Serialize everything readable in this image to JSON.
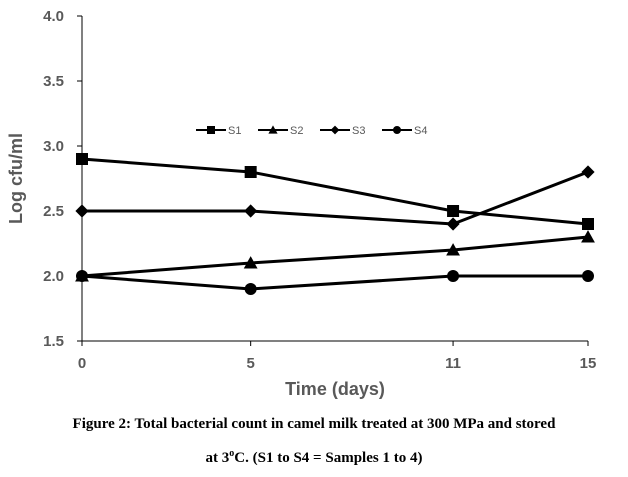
{
  "chart_data": {
    "type": "line",
    "x": [
      0,
      5,
      11,
      15
    ],
    "x_tick_labels": [
      "0",
      "5",
      "11",
      "15"
    ],
    "y_tick_labels": [
      "1.5",
      "2.0",
      "2.5",
      "3.0",
      "3.5",
      "4.0"
    ],
    "ylim": [
      1.5,
      4.0
    ],
    "xlabel": "Time (days)",
    "ylabel": "Log cfu/ml",
    "grid": false,
    "legend_position": "top-center",
    "series": [
      {
        "name": "S1",
        "marker": "square",
        "values": [
          2.9,
          2.8,
          2.5,
          2.4
        ]
      },
      {
        "name": "S2",
        "marker": "triangle",
        "values": [
          2.0,
          2.1,
          2.2,
          2.3
        ]
      },
      {
        "name": "S3",
        "marker": "diamond",
        "values": [
          2.5,
          2.5,
          2.4,
          2.8
        ]
      },
      {
        "name": "S4",
        "marker": "circle",
        "values": [
          2.0,
          1.9,
          2.0,
          2.0
        ]
      }
    ],
    "colors": {
      "series": "#000000",
      "axis": "#000000",
      "text": "#595959"
    }
  },
  "caption": {
    "line1": "Figure 2: Total bacterial count in camel milk treated at 300 MPa and stored",
    "line2_prefix": "at 3",
    "line2_sup": "o",
    "line2_suffix": "C. (S1 to S4 = Samples 1 to 4)"
  }
}
